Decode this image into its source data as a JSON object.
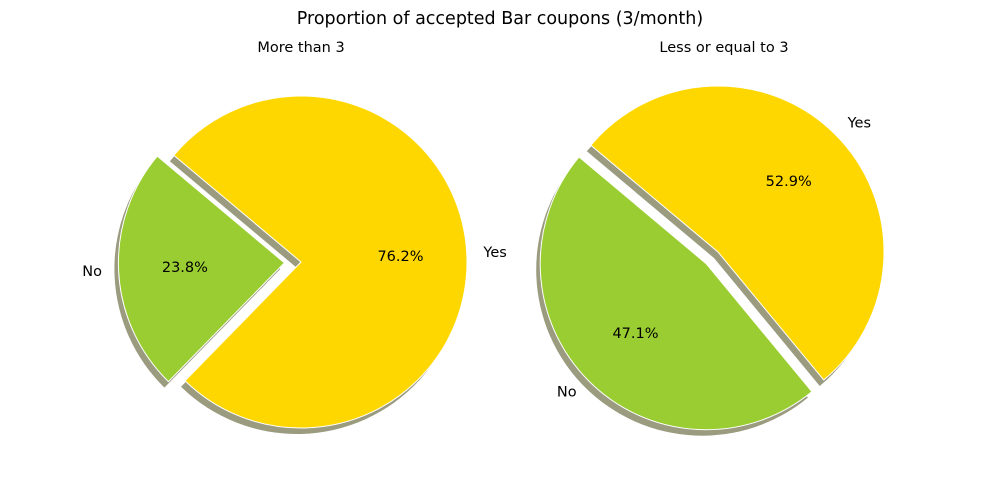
{
  "chart_data": {
    "title": "Proportion of accepted Bar coupons (3/month)",
    "type": "pie",
    "colors": {
      "Yes": "#ffd700",
      "No": "#9acd32"
    },
    "pies": [
      {
        "title": "More than 3",
        "slices": [
          {
            "label": "No",
            "value": 23.8,
            "pct_label": "23.8%",
            "explode": true
          },
          {
            "label": "Yes",
            "value": 76.2,
            "pct_label": "76.2%",
            "explode": false
          }
        ]
      },
      {
        "title": "Less or equal to 3",
        "slices": [
          {
            "label": "No",
            "value": 47.1,
            "pct_label": "47.1%",
            "explode": true
          },
          {
            "label": "Yes",
            "value": 52.9,
            "pct_label": "52.9%",
            "explode": false
          }
        ]
      }
    ]
  }
}
